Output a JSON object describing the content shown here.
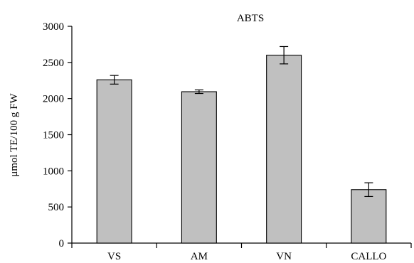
{
  "chart_data": {
    "type": "bar",
    "title": "ABTS",
    "xlabel": "",
    "ylabel": "μmol TE/100 g FW",
    "categories": [
      "VS",
      "AM",
      "VN",
      "CALLO"
    ],
    "values": [
      2260,
      2095,
      2600,
      740
    ],
    "errors": [
      60,
      25,
      120,
      95
    ],
    "ylim": [
      0,
      3000
    ],
    "yticks": [
      0,
      500,
      1000,
      1500,
      2000,
      2500,
      3000
    ],
    "bar_color": "#c0c0c0",
    "grid": false,
    "legend": "none"
  }
}
